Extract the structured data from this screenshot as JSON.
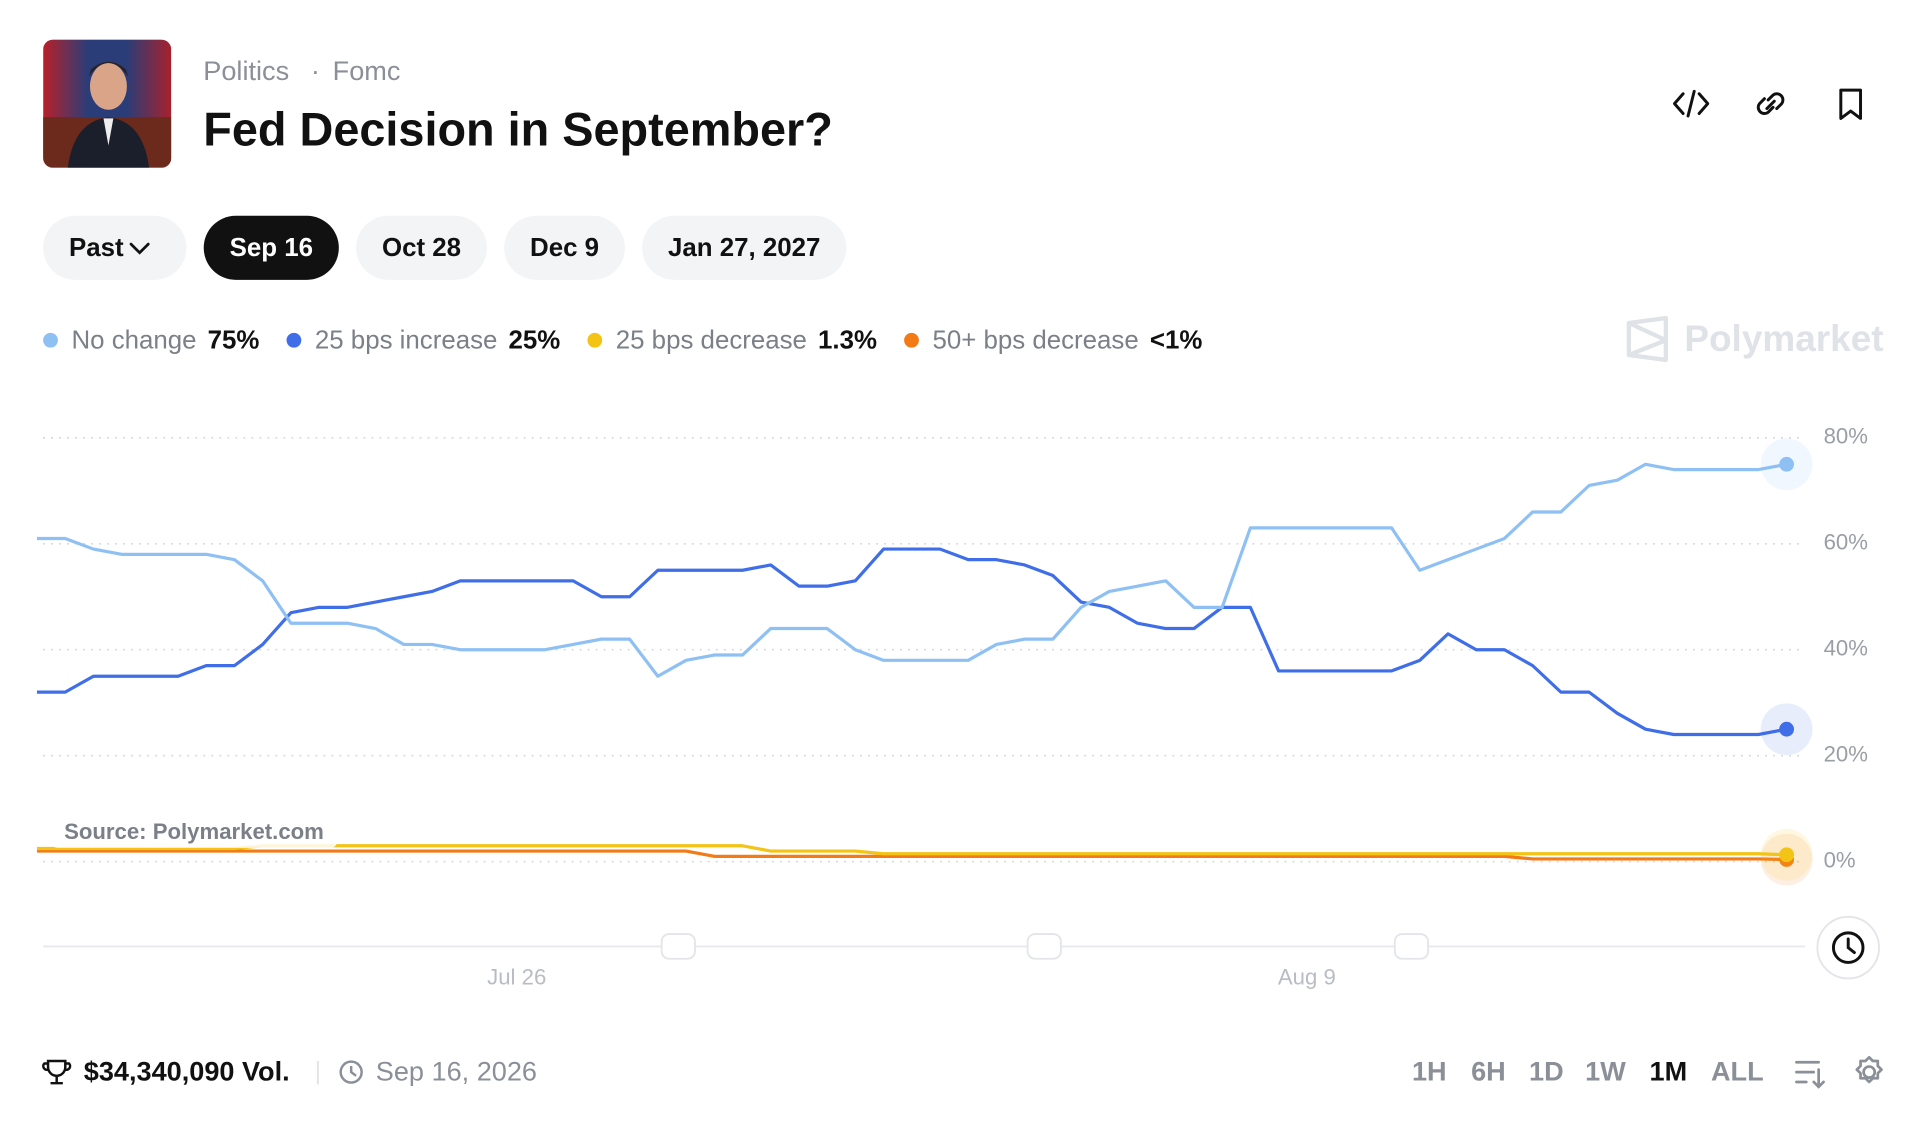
{
  "header": {
    "breadcrumb": [
      "Politics",
      "Fomc"
    ],
    "title": "Fed Decision in September?"
  },
  "tabs": {
    "items": [
      "Past",
      "Sep 16",
      "Oct 28",
      "Dec 9",
      "Jan 27, 2027"
    ],
    "active": 1
  },
  "watermark": "Polymarket",
  "source": "Source: Polymarket.com",
  "chart_data": {
    "type": "line",
    "categories": [
      null,
      null,
      null,
      null,
      null,
      null,
      null,
      null,
      null,
      null,
      null,
      null,
      null,
      null,
      null,
      null,
      null,
      "Jul 26",
      null,
      null,
      null,
      null,
      null,
      null,
      null,
      null,
      null,
      null,
      null,
      null,
      null,
      null,
      null,
      null,
      null,
      null,
      null,
      null,
      null,
      null,
      null,
      null,
      null,
      null,
      null,
      "Aug 9",
      null,
      null,
      null,
      null,
      null,
      null,
      null,
      null,
      null,
      null,
      null,
      null,
      null,
      null,
      null,
      null,
      null
    ],
    "ylim": [
      -16,
      84
    ],
    "yticks": [
      {
        "value": 0,
        "label": "0%"
      },
      {
        "value": 20,
        "label": "20%"
      },
      {
        "value": 40,
        "label": "40%"
      },
      {
        "value": 60,
        "label": "60%"
      },
      {
        "value": 80,
        "label": "80%"
      }
    ],
    "grid": true,
    "series": [
      {
        "name": "No change",
        "color": "#8fc0f4",
        "current_label": "75%",
        "values": [
          61,
          61,
          59,
          58,
          58,
          58,
          58,
          57,
          53,
          45,
          45,
          45,
          44,
          41,
          41,
          40,
          40,
          40,
          40,
          41,
          42,
          42,
          35,
          38,
          39,
          39,
          44,
          44,
          44,
          40,
          38,
          38,
          38,
          38,
          41,
          42,
          42,
          48,
          51,
          52,
          53,
          48,
          48,
          63,
          63,
          63,
          63,
          63,
          63,
          55,
          57,
          59,
          61,
          66,
          66,
          71,
          72,
          75,
          74,
          74,
          74,
          74,
          75
        ]
      },
      {
        "name": "25 bps increase",
        "color": "#3f6ee8",
        "current_label": "25%",
        "values": [
          32,
          32,
          35,
          35,
          35,
          35,
          37,
          37,
          41,
          47,
          48,
          48,
          49,
          50,
          51,
          53,
          53,
          53,
          53,
          53,
          50,
          50,
          55,
          55,
          55,
          55,
          56,
          52,
          52,
          53,
          59,
          59,
          59,
          57,
          57,
          56,
          54,
          49,
          48,
          45,
          44,
          44,
          48,
          48,
          36,
          36,
          36,
          36,
          36,
          38,
          43,
          40,
          40,
          37,
          32,
          32,
          28,
          25,
          24,
          24,
          24,
          24,
          25
        ]
      },
      {
        "name": "25 bps decrease",
        "color": "#f3c316",
        "current_label": "1.3%",
        "values": [
          2.5,
          2.5,
          2.5,
          2.5,
          2.5,
          2.5,
          2.5,
          2.5,
          3,
          3,
          3,
          3,
          3,
          3,
          3,
          3,
          3,
          3,
          3,
          3,
          3,
          3,
          3,
          3,
          3,
          3,
          2,
          2,
          2,
          2,
          1.5,
          1.5,
          1.5,
          1.5,
          1.5,
          1.5,
          1.5,
          1.5,
          1.5,
          1.5,
          1.5,
          1.5,
          1.5,
          1.5,
          1.5,
          1.5,
          1.5,
          1.5,
          1.5,
          1.5,
          1.5,
          1.5,
          1.5,
          1.5,
          1.5,
          1.5,
          1.5,
          1.5,
          1.5,
          1.5,
          1.5,
          1.5,
          1.3
        ]
      },
      {
        "name": "50+ bps decrease",
        "color": "#f27a17",
        "current_label": "<1%",
        "values": [
          2,
          2,
          2,
          2,
          2,
          2,
          2,
          2,
          2,
          2,
          2,
          2,
          2,
          2,
          2,
          2,
          2,
          2,
          2,
          2,
          2,
          2,
          2,
          2,
          1,
          1,
          1,
          1,
          1,
          1,
          1,
          1,
          1,
          1,
          1,
          1,
          1,
          1,
          1,
          1,
          1,
          1,
          1,
          1,
          1,
          1,
          1,
          1,
          1,
          1,
          1,
          1,
          1,
          0.5,
          0.5,
          0.5,
          0.5,
          0.5,
          0.5,
          0.5,
          0.5,
          0.5,
          0.4
        ]
      }
    ]
  },
  "footer": {
    "volume": "$34,340,090 Vol.",
    "date": "Sep 16, 2026",
    "ranges": [
      "1H",
      "6H",
      "1D",
      "1W",
      "1M",
      "ALL"
    ],
    "active_range": 4
  }
}
